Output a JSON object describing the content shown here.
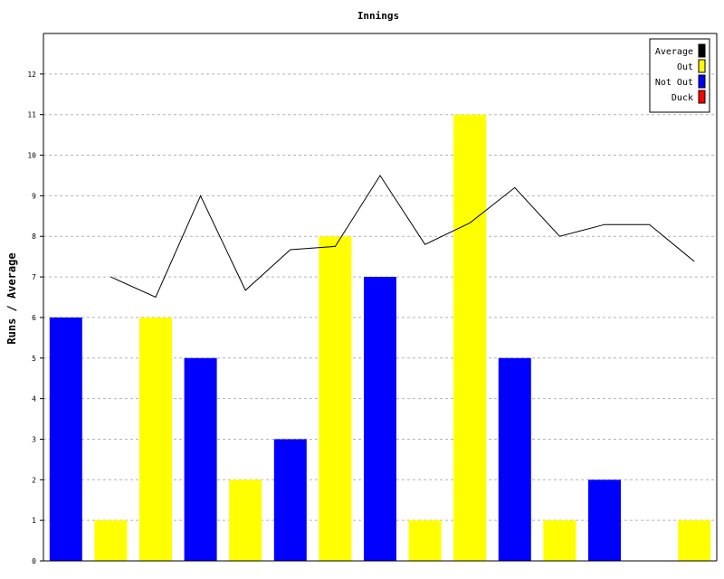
{
  "chart_data": {
    "type": "bar",
    "title": "Innings",
    "xlabel": "",
    "ylabel": "Runs / Average",
    "ylim": [
      0,
      13
    ],
    "yticks": [
      0,
      1,
      2,
      3,
      4,
      5,
      6,
      7,
      8,
      9,
      10,
      11,
      12
    ],
    "grid": true,
    "legend_position": "top-right",
    "innings": [
      {
        "runs": 6,
        "status": "Not Out",
        "average": null
      },
      {
        "runs": 1,
        "status": "Out",
        "average": 7.0
      },
      {
        "runs": 6,
        "status": "Out",
        "average": 6.5
      },
      {
        "runs": 5,
        "status": "Not Out",
        "average": 9.0
      },
      {
        "runs": 2,
        "status": "Out",
        "average": 6.67
      },
      {
        "runs": 3,
        "status": "Not Out",
        "average": 7.67
      },
      {
        "runs": 8,
        "status": "Out",
        "average": 7.75
      },
      {
        "runs": 7,
        "status": "Not Out",
        "average": 9.5
      },
      {
        "runs": 1,
        "status": "Out",
        "average": 7.8
      },
      {
        "runs": 11,
        "status": "Out",
        "average": 8.33
      },
      {
        "runs": 5,
        "status": "Not Out",
        "average": 9.2
      },
      {
        "runs": 1,
        "status": "Out",
        "average": 8.0
      },
      {
        "runs": 2,
        "status": "Not Out",
        "average": 8.29
      },
      {
        "runs": 0,
        "status": "Duck",
        "average": 8.29
      },
      {
        "runs": 1,
        "status": "Out",
        "average": 7.38
      }
    ],
    "legend": [
      {
        "label": "Average",
        "color": "#000000"
      },
      {
        "label": "Out",
        "color": "#ffff00"
      },
      {
        "label": "Not Out",
        "color": "#0000ff"
      },
      {
        "label": "Duck",
        "color": "#ff0000"
      }
    ],
    "colors": {
      "Out": "#ffff00",
      "Not Out": "#0000ff",
      "Duck": "#ff0000",
      "Average": "#000000"
    }
  }
}
